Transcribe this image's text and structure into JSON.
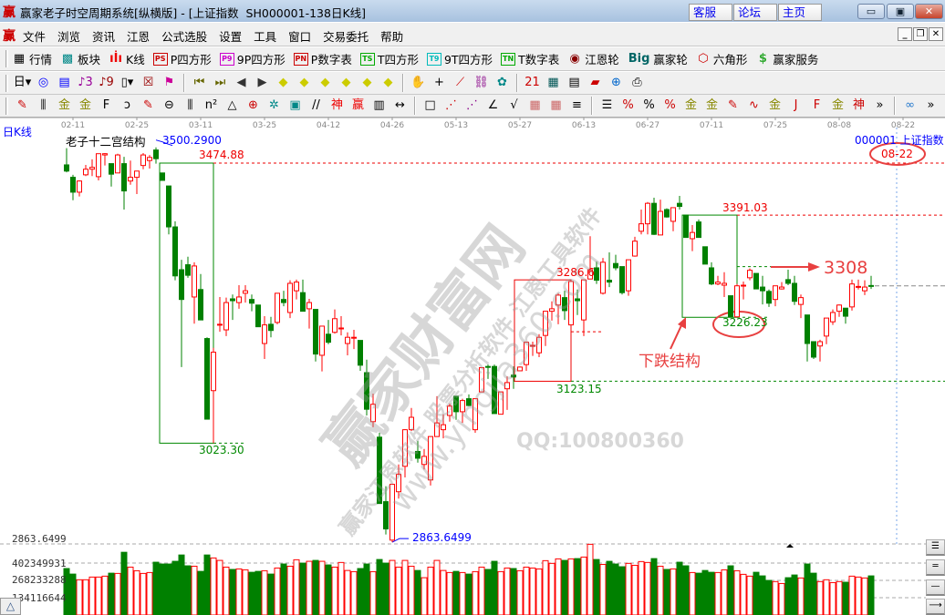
{
  "window": {
    "title": "赢家老子时空周期系统[纵横版] - [上证指数  SH000001-138日K线]",
    "logo": "赢",
    "links": [
      "客服",
      "论坛",
      "主页"
    ],
    "controls": {
      "minimize": "▭",
      "maximize": "▣",
      "close": "✕"
    }
  },
  "menu": {
    "logo": "赢",
    "items": [
      "文件",
      "浏览",
      "资讯",
      "江恩",
      "公式选股",
      "设置",
      "工具",
      "窗口",
      "交易委托",
      "帮助"
    ],
    "mdi": [
      "_",
      "❐",
      "✕"
    ]
  },
  "toolbar1": [
    {
      "label": "行情",
      "icon": "quote-table-icon",
      "glyph": "▦",
      "color": "#000"
    },
    {
      "label": "板块",
      "icon": "sector-blocks-icon",
      "glyph": "▩",
      "color": "#088"
    },
    {
      "label": "K线",
      "icon": "candlestick-icon",
      "glyph": "ıİı",
      "color": "#e00"
    },
    {
      "label": "P四方形",
      "icon": "ps-icon",
      "glyph": "PS",
      "color": "#c00"
    },
    {
      "label": "9P四方形",
      "icon": "p9-icon",
      "glyph": "P9",
      "color": "#c0c"
    },
    {
      "label": "P数字表",
      "icon": "pn-icon",
      "glyph": "PN",
      "color": "#c00"
    },
    {
      "label": "T四方形",
      "icon": "ts-icon",
      "glyph": "TS",
      "color": "#0a0"
    },
    {
      "label": "9T四方形",
      "icon": "t9-icon",
      "glyph": "T9",
      "color": "#0bb"
    },
    {
      "label": "T数字表",
      "icon": "tn-icon",
      "glyph": "TN",
      "color": "#0a0"
    },
    {
      "label": "江恩轮",
      "icon": "gann-wheel-icon",
      "glyph": "◉",
      "color": "#800"
    },
    {
      "label": "赢家轮",
      "icon": "big-wheel-icon",
      "glyph": "Big",
      "color": "#066"
    },
    {
      "label": "六角形",
      "icon": "hexagon-icon",
      "glyph": "⬡",
      "color": "#c00"
    },
    {
      "label": "赢家服务",
      "icon": "dollar-icon",
      "glyph": "$",
      "color": "#3a3"
    }
  ],
  "toolbar2": [
    [
      "period-day-icon",
      "日▾",
      "#000"
    ],
    [
      "zoom-map-icon",
      "◎",
      "#00f"
    ],
    [
      "notes-icon",
      "▤",
      "#00f"
    ],
    [
      "wave3-icon",
      "♪3",
      "#909"
    ],
    [
      "wave9-icon",
      "♪9",
      "#900"
    ],
    [
      "candle-type-icon",
      "▯▾",
      "#000"
    ],
    [
      "map-icon",
      "☒",
      "#900"
    ],
    [
      "flag-icon",
      "⚑",
      "#c09"
    ],
    [
      "sep"
    ],
    [
      "first-icon",
      "⏮",
      "#660"
    ],
    [
      "last-icon",
      "⏭",
      "#660"
    ],
    [
      "left-icon",
      "◀",
      "#333"
    ],
    [
      "right-icon",
      "▶",
      "#333"
    ],
    [
      "move-left-icon",
      "◆",
      "#cc0"
    ],
    [
      "move-right-icon",
      "◆",
      "#cc0"
    ],
    [
      "expand-icon",
      "◆",
      "#cc0"
    ],
    [
      "shrink-icon",
      "◆",
      "#cc0"
    ],
    [
      "zoom-in-icon",
      "◆",
      "#cc0"
    ],
    [
      "zoom-out-icon",
      "◆",
      "#cc0"
    ],
    [
      "sep"
    ],
    [
      "hand-icon",
      "✋",
      "#000"
    ],
    [
      "crosshair-icon",
      "+",
      "#000"
    ],
    [
      "line-tool-icon",
      "⟋",
      "#c00"
    ],
    [
      "chain-icon",
      "⛓",
      "#808"
    ],
    [
      "settings-icon",
      "✿",
      "#088"
    ],
    [
      "sep"
    ],
    [
      "calendar-icon",
      "21",
      "#c00"
    ],
    [
      "calculator-icon",
      "▦",
      "#055"
    ],
    [
      "document-icon",
      "▤",
      "#000"
    ],
    [
      "save-icon",
      "▰",
      "#c00"
    ],
    [
      "network-icon",
      "⊕",
      "#06c"
    ],
    [
      "print-icon",
      "⎙",
      "#000"
    ]
  ],
  "toolbar3": [
    [
      "pen-icon",
      "✎",
      "#c00"
    ],
    [
      "grid-lines-icon",
      "⫼",
      "#000"
    ],
    [
      "gold-icon",
      "金",
      "#880"
    ],
    [
      "gold2-icon",
      "金",
      "#880"
    ],
    [
      "fib-icon",
      "F",
      "#000"
    ],
    [
      "spiral-icon",
      "ↄ",
      "#000"
    ],
    [
      "pen2-icon",
      "✎",
      "#c00"
    ],
    [
      "circle-scale-icon",
      "⊖",
      "#000"
    ],
    [
      "lines-icon",
      "⫼",
      "#000"
    ],
    [
      "n2-icon",
      "n²",
      "#000"
    ],
    [
      "triangle-icon",
      "△",
      "#000"
    ],
    [
      "target-icon",
      "⊕",
      "#c00"
    ],
    [
      "web-icon",
      "✲",
      "#088"
    ],
    [
      "square-web-icon",
      "▣",
      "#088"
    ],
    [
      "slash-icon",
      "//",
      "#000"
    ],
    [
      "shen-icon",
      "神",
      "#e00"
    ],
    [
      "ying-icon",
      "赢",
      "#e00"
    ],
    [
      "ruler-icon",
      "▥",
      "#000"
    ],
    [
      "width-icon",
      "↔",
      "#000"
    ],
    [
      "sep"
    ],
    [
      "box-icon",
      "□",
      "#000"
    ],
    [
      "fan-icon",
      "⋰",
      "#c00"
    ],
    [
      "fan2-icon",
      "⋰",
      "#808"
    ],
    [
      "angle-icon",
      "∠",
      "#000"
    ],
    [
      "check-icon",
      "√",
      "#000"
    ],
    [
      "grid-icon",
      "▦",
      "#c66"
    ],
    [
      "grid2-icon",
      "▦",
      "#c66"
    ],
    [
      "parallel-icon",
      "≡",
      "#000"
    ],
    [
      "sep"
    ],
    [
      "ladder-icon",
      "☰",
      "#000"
    ],
    [
      "percent-line-icon",
      "%",
      "#c00"
    ],
    [
      "percent-icon",
      "%",
      "#000"
    ],
    [
      "percent2-icon",
      "%",
      "#c00"
    ],
    [
      "gold-circle-icon",
      "金",
      "#880"
    ],
    [
      "gold-lines-icon",
      "金",
      "#880"
    ],
    [
      "pen3-icon",
      "✎",
      "#c00"
    ],
    [
      "sine-icon",
      "∿",
      "#c00"
    ],
    [
      "gold3-icon",
      "金",
      "#880"
    ],
    [
      "j-icon",
      "J",
      "#c00"
    ],
    [
      "f-angle-icon",
      "F",
      "#c00"
    ],
    [
      "gold-angle-icon",
      "金",
      "#880"
    ],
    [
      "shen-angle-icon",
      "神",
      "#c00"
    ],
    [
      "more-icon",
      "»",
      "#000"
    ],
    [
      "sep"
    ],
    [
      "infinity-icon",
      "∞",
      "#27c"
    ],
    [
      "more2-icon",
      "»",
      "#000"
    ]
  ],
  "chart_header": {
    "period": "日K线",
    "indicator_name": "老子十二宫结构",
    "symbol": "000001 上证指数",
    "current_date": "08-22"
  },
  "watermark": {
    "main": "赢家财富网",
    "line1": "赢家江恩软件 股票分析软件 江恩工具软件",
    "url": "www.yingjia360.com",
    "qq": "QQ:100800360"
  },
  "colors": {
    "up": "#ff0000",
    "down": "#008000",
    "label_blue": "#0000ff",
    "annotation_red": "#e84040"
  },
  "chart_data": {
    "type": "candlestick",
    "symbol": "SH000001",
    "x_tick_labels": [
      "02-11",
      "02-25",
      "03-11",
      "03-25",
      "04-12",
      "04-26",
      "05-13",
      "05-27",
      "06-13",
      "06-27",
      "07-11",
      "07-25",
      "08-08",
      "08-22"
    ],
    "ohlc_fields": [
      "open",
      "high",
      "low",
      "close"
    ],
    "ohlc": [
      [
        3472,
        3499,
        3460,
        3462
      ],
      [
        3452,
        3456,
        3415,
        3428
      ],
      [
        3428,
        3447,
        3421,
        3446
      ],
      [
        3456,
        3472,
        3454,
        3465
      ],
      [
        3465,
        3481,
        3454,
        3468
      ],
      [
        3453,
        3490,
        3447,
        3490
      ],
      [
        3488,
        3491,
        3471,
        3490
      ],
      [
        3474,
        3474,
        3437,
        3457
      ],
      [
        3459,
        3490,
        3459,
        3488
      ],
      [
        3474,
        3485,
        3400,
        3430
      ],
      [
        3446,
        3479,
        3440,
        3452
      ],
      [
        3452,
        3462,
        3425,
        3462
      ],
      [
        3471,
        3491,
        3465,
        3488
      ],
      [
        3479,
        3488,
        3466,
        3484
      ],
      [
        3496,
        3500.29,
        3474,
        3482
      ],
      [
        3459,
        3459,
        3447,
        3447
      ],
      [
        3438,
        3438,
        3360,
        3372
      ],
      [
        3372,
        3381,
        3286,
        3293
      ],
      [
        3303,
        3319,
        3146,
        3255
      ],
      [
        3311,
        3324,
        3290,
        3294
      ],
      [
        3259,
        3315,
        3216,
        3309
      ],
      [
        3271,
        3296,
        3222,
        3222
      ],
      [
        3192,
        3194,
        3062,
        3062
      ],
      [
        3108,
        3177,
        3023.3,
        3170
      ],
      [
        3214,
        3259,
        3203,
        3215
      ],
      [
        3206,
        3258,
        3196,
        3250
      ],
      [
        3256,
        3263,
        3222,
        3253
      ],
      [
        3250,
        3278,
        3240,
        3259
      ],
      [
        3265,
        3278,
        3250,
        3269
      ],
      [
        3255,
        3263,
        3236,
        3249
      ],
      [
        3246,
        3246,
        3211,
        3211
      ],
      [
        3184,
        3228,
        3159,
        3214
      ],
      [
        3215,
        3227,
        3194,
        3205
      ],
      [
        3218,
        3265,
        3215,
        3265
      ],
      [
        3255,
        3269,
        3244,
        3250
      ],
      [
        3234,
        3286,
        3225,
        3281
      ],
      [
        3269,
        3287,
        3255,
        3283
      ],
      [
        3266,
        3287,
        3236,
        3236
      ],
      [
        3240,
        3256,
        3208,
        3250
      ],
      [
        3239,
        3239,
        3155,
        3167
      ],
      [
        3165,
        3212,
        3139,
        3212
      ],
      [
        3199,
        3222,
        3183,
        3186
      ],
      [
        3202,
        3239,
        3200,
        3224
      ],
      [
        3208,
        3228,
        3197,
        3209
      ],
      [
        3184,
        3202,
        3165,
        3194
      ],
      [
        3193,
        3206,
        3175,
        3194
      ],
      [
        3189,
        3189,
        3140,
        3149
      ],
      [
        3137,
        3158,
        3068,
        3078
      ],
      [
        3058,
        3103,
        3049,
        3086
      ],
      [
        3033,
        3040,
        2926,
        2926
      ],
      [
        2929,
        2954,
        2876,
        2885
      ],
      [
        2867,
        2957,
        2863.6499,
        2957
      ],
      [
        2945,
        2989,
        2934,
        2973
      ],
      [
        2986,
        3046,
        2968,
        3045
      ],
      [
        3045,
        3080,
        3043,
        3065
      ],
      [
        3010,
        3027,
        2992,
        2999
      ],
      [
        2989,
        3014,
        2981,
        3002
      ],
      [
        2964,
        3034,
        2955,
        3034
      ],
      [
        3034,
        3099,
        3034,
        3056
      ],
      [
        3045,
        3070,
        3031,
        3053
      ],
      [
        3068,
        3087,
        3058,
        3083
      ],
      [
        3099,
        3099,
        3061,
        3074
      ],
      [
        3074,
        3095,
        3056,
        3092
      ],
      [
        3095,
        3102,
        3083,
        3084
      ],
      [
        3045,
        3095,
        3040,
        3095
      ],
      [
        3106,
        3145,
        3106,
        3145
      ],
      [
        3147,
        3150,
        3127,
        3146
      ],
      [
        3147,
        3150,
        3071,
        3071
      ],
      [
        3070,
        3106,
        3070,
        3106
      ],
      [
        3111,
        3131,
        3077,
        3121
      ],
      [
        3133,
        3147,
        3111,
        3130
      ],
      [
        3140,
        3147,
        3140,
        3146
      ],
      [
        3150,
        3187,
        3140,
        3186
      ],
      [
        3180,
        3187,
        3164,
        3181
      ],
      [
        3169,
        3199,
        3162,
        3194
      ],
      [
        3197,
        3236,
        3180,
        3236
      ],
      [
        3236,
        3252,
        3221,
        3240
      ],
      [
        3246,
        3265,
        3215,
        3262
      ],
      [
        3258,
        3269,
        3222,
        3237
      ],
      [
        3214,
        3286,
        3214,
        3284
      ],
      [
        3256,
        3271,
        3230,
        3253
      ],
      [
        3222,
        3286.6,
        3196,
        3286.6
      ],
      [
        3288,
        3357,
        3288,
        3303
      ],
      [
        3306,
        3316,
        3280,
        3286
      ],
      [
        3265,
        3322,
        3263,
        3315
      ],
      [
        3286,
        3331,
        3275,
        3283
      ],
      [
        3313,
        3327,
        3302,
        3306
      ],
      [
        3308,
        3308,
        3263,
        3266
      ],
      [
        3269,
        3319,
        3261,
        3319
      ],
      [
        3325,
        3356,
        3324,
        3349
      ],
      [
        3365,
        3400,
        3360,
        3377
      ],
      [
        3377,
        3412,
        3360,
        3410
      ],
      [
        3410,
        3419,
        3359,
        3360
      ],
      [
        3359,
        3416,
        3359,
        3397
      ],
      [
        3400,
        3402,
        3387,
        3388
      ],
      [
        3381,
        3403,
        3365,
        3403
      ],
      [
        3410,
        3422,
        3400,
        3405
      ],
      [
        3391.03,
        3391.03,
        3355,
        3355
      ],
      [
        3353,
        3375,
        3333,
        3363
      ],
      [
        3380,
        3384,
        3355,
        3355
      ],
      [
        3340,
        3340,
        3312,
        3312
      ],
      [
        3306,
        3315,
        3278,
        3280
      ],
      [
        3280,
        3293,
        3278,
        3283
      ],
      [
        3278,
        3299,
        3259,
        3281
      ],
      [
        3261,
        3261,
        3227,
        3227
      ],
      [
        3227,
        3280,
        3226.23,
        3277
      ],
      [
        3277,
        3284,
        3255,
        3278
      ],
      [
        3290,
        3305,
        3286,
        3302
      ],
      [
        3297,
        3297,
        3272,
        3272
      ],
      [
        3275,
        3293,
        3247,
        3269
      ],
      [
        3268,
        3271,
        3243,
        3249
      ],
      [
        3255,
        3277,
        3244,
        3277
      ],
      [
        3272,
        3283,
        3271,
        3275
      ],
      [
        3287,
        3303,
        3278,
        3281
      ],
      [
        3281,
        3293,
        3246,
        3252
      ],
      [
        3247,
        3263,
        3225,
        3258
      ],
      [
        3230,
        3230,
        3155,
        3184
      ],
      [
        3187,
        3187,
        3159,
        3162
      ],
      [
        3180,
        3190,
        3155,
        3187
      ],
      [
        3196,
        3225,
        3183,
        3225
      ],
      [
        3219,
        3239,
        3214,
        3234
      ],
      [
        3236,
        3247,
        3227,
        3246
      ],
      [
        3241,
        3241,
        3216,
        3228
      ],
      [
        3243,
        3287,
        3237,
        3280
      ],
      [
        3275,
        3287,
        3271,
        3276
      ],
      [
        3269,
        3286,
        3262,
        3275
      ],
      [
        3277.5,
        3293,
        3272,
        3277
      ]
    ],
    "volume_unit": "millions of shares",
    "volume": [
      360,
      317,
      273,
      273,
      294,
      294,
      301,
      324,
      322,
      486,
      371,
      343,
      322,
      329,
      409,
      395,
      395,
      416,
      465,
      381,
      378,
      338,
      465,
      442,
      423,
      371,
      353,
      357,
      350,
      331,
      338,
      343,
      317,
      364,
      395,
      378,
      428,
      402,
      416,
      423,
      416,
      388,
      371,
      407,
      345,
      336,
      360,
      395,
      336,
      430,
      402,
      423,
      371,
      423,
      378,
      345,
      289,
      371,
      423,
      345,
      329,
      338,
      329,
      317,
      336,
      371,
      353,
      416,
      336,
      364,
      360,
      343,
      371,
      364,
      357,
      421,
      400,
      435,
      423,
      435,
      437,
      449,
      548,
      430,
      392,
      416,
      395,
      374,
      400,
      385,
      414,
      407,
      437,
      378,
      353,
      357,
      409,
      381,
      329,
      324,
      345,
      331,
      329,
      350,
      381,
      343,
      315,
      301,
      331,
      303,
      268,
      259,
      244,
      289,
      310,
      287,
      395,
      324,
      259,
      273,
      251,
      259,
      254,
      301,
      294,
      287,
      303
    ],
    "volume_axis_labels": [
      "2863.6499",
      "402349931",
      "268233288",
      "134116644"
    ],
    "annotations": {
      "structure_1": {
        "high_label": "3474.88",
        "high_value": 3474.88,
        "peak_label": "3500.2900",
        "low_label": "3023.30",
        "low_value": 3023.3,
        "start_index": 15,
        "end_index": 23
      },
      "structure_2": {
        "high_label": "3286.6",
        "high_value": 3286.6,
        "low_label": "3123.15",
        "low_value": 3123.15,
        "start_index": 71,
        "end_index": 79,
        "mid_value": 3203
      },
      "structure_3": {
        "high_label": "3391.03",
        "high_value": 3391.03,
        "low_label": "3226.23",
        "low_value": 3226.23,
        "start_index": 97,
        "end_index": 105,
        "mid_value": 3308
      },
      "market_low_label": "2863.6499",
      "target_label": "3308",
      "structure_text": "下跌结构",
      "last_price": 3277
    }
  },
  "side_buttons": [
    "☰",
    "═",
    "—",
    "⟶"
  ],
  "left_button": "△"
}
